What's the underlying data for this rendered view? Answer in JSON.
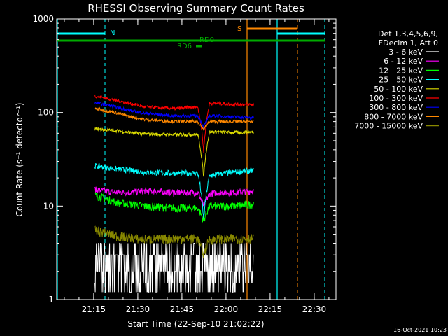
{
  "chart_data": {
    "type": "line",
    "title": "RHESSI Observing Summary Count Rates",
    "xlabel": "Start Time (22-Sep-10 21:02:22)",
    "ylabel": "Count Rate (s⁻¹ detector⁻¹)",
    "y_scale": "log",
    "ylim": [
      1,
      1000
    ],
    "y_ticks": [
      {
        "value": 1,
        "label": "1"
      },
      {
        "value": 10,
        "label": "10"
      },
      {
        "value": 100,
        "label": "100"
      },
      {
        "value": 1000,
        "label": "1000"
      }
    ],
    "x_unit": "minutes since 21:02:22",
    "xlim": [
      0,
      95
    ],
    "x_ticks": [
      {
        "value": 12.6,
        "label": "21:15"
      },
      {
        "value": 27.6,
        "label": "21:30"
      },
      {
        "value": 42.6,
        "label": "21:45"
      },
      {
        "value": 57.6,
        "label": "22:00"
      },
      {
        "value": 72.6,
        "label": "22:15"
      },
      {
        "value": 87.6,
        "label": "22:30"
      }
    ],
    "legend": {
      "header": [
        "Det 1,3,4,5,6,9,",
        "FDecim 1, Att 0"
      ],
      "position": "right"
    },
    "series": [
      {
        "name": "3 - 6 keV",
        "color": "#ffffff",
        "x": [
          13,
          20,
          25,
          30,
          40,
          50,
          52,
          55,
          60,
          67
        ],
        "y": [
          2.5,
          2.5,
          2.3,
          2.2,
          2.5,
          2.3,
          3,
          2.7,
          2.5,
          2.6
        ]
      },
      {
        "name": "6 - 12 keV",
        "color": "#ff00ff",
        "x": [
          13,
          20,
          25,
          30,
          40,
          48,
          50,
          52,
          55,
          60,
          67
        ],
        "y": [
          15,
          14,
          14,
          14.5,
          14,
          14,
          10,
          13.5,
          14,
          14,
          14.5
        ]
      },
      {
        "name": "12 - 25 keV",
        "color": "#00ff00",
        "x": [
          13,
          20,
          25,
          30,
          40,
          48,
          50,
          52,
          55,
          60,
          67
        ],
        "y": [
          13,
          11,
          10.5,
          10,
          9.5,
          9.5,
          7,
          10,
          10,
          10,
          10.5
        ]
      },
      {
        "name": "25 - 50 keV",
        "color": "#00ffff",
        "x": [
          13,
          20,
          25,
          30,
          40,
          48,
          50,
          52,
          55,
          60,
          67
        ],
        "y": [
          27,
          25,
          24,
          23,
          22.5,
          22.5,
          7,
          21,
          22,
          23,
          24
        ]
      },
      {
        "name": "50 - 100 keV",
        "color": "#dddd00",
        "x": [
          13,
          20,
          25,
          30,
          40,
          48,
          50,
          52,
          55,
          60,
          67
        ],
        "y": [
          67,
          64,
          61,
          59,
          58,
          58,
          20,
          62,
          62,
          61,
          62
        ]
      },
      {
        "name": "100 - 300 keV",
        "color": "#ff0000",
        "x": [
          13,
          20,
          25,
          30,
          40,
          48,
          50,
          52,
          55,
          60,
          67
        ],
        "y": [
          150,
          135,
          125,
          115,
          110,
          115,
          38,
          125,
          125,
          122,
          122
        ]
      },
      {
        "name": "300 - 800 keV",
        "color": "#0000ff",
        "x": [
          13,
          20,
          25,
          30,
          40,
          48,
          50,
          52,
          55,
          60,
          67
        ],
        "y": [
          128,
          115,
          105,
          98,
          92,
          92,
          70,
          92,
          92,
          90,
          88
        ]
      },
      {
        "name": "800 - 7000 keV",
        "color": "#ff8800",
        "x": [
          13,
          20,
          25,
          30,
          40,
          48,
          50,
          52,
          55,
          60,
          67
        ],
        "y": [
          110,
          100,
          90,
          84,
          80,
          80,
          66,
          80,
          80,
          80,
          80
        ]
      },
      {
        "name": "7000 - 15000 keV",
        "color": "#888800",
        "x": [
          13,
          20,
          25,
          30,
          40,
          48,
          50,
          52,
          55,
          60,
          67
        ],
        "y": [
          5.5,
          4.8,
          4.6,
          4.4,
          4.5,
          4.5,
          3,
          4.4,
          4.4,
          4.5,
          4.5
        ]
      }
    ],
    "markers": [
      {
        "label": "N",
        "color": "#00ffff"
      },
      {
        "label": "RD0",
        "color": "#00aa00"
      },
      {
        "label": "RD6",
        "color": "#00aa00"
      },
      {
        "label": "S",
        "color": "#ff8800"
      }
    ]
  },
  "footer_date": "16-Oct-2021 10:23"
}
